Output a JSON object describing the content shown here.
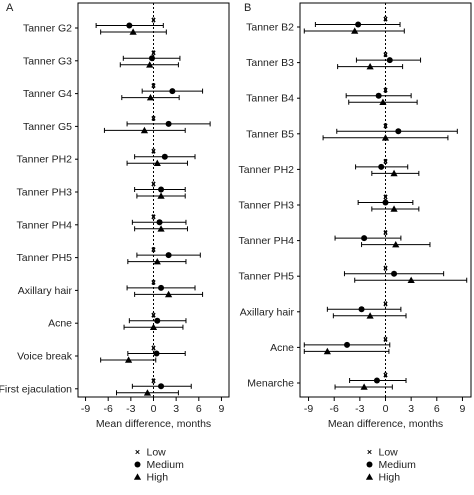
{
  "chart_data": [
    {
      "panel_label": "A",
      "type": "forest",
      "xlabel": "Mean difference, months",
      "xlim": [
        -10,
        10
      ],
      "xticks": [
        -9,
        -6,
        -3,
        0,
        3,
        6,
        9
      ],
      "reference_line": 0,
      "groups": [
        "Tanner G2",
        "Tanner G3",
        "Tanner G4",
        "Tanner G5",
        "Tanner PH2",
        "Tanner PH3",
        "Tanner PH4",
        "Tanner PH5",
        "Axillary hair",
        "Acne",
        "Voice break",
        "First ejaculation"
      ],
      "series": [
        {
          "name": "Low",
          "marker": "x",
          "points": [
            {
              "est": 0.0,
              "lo": -0.1,
              "hi": 0.1
            },
            {
              "est": 0.0,
              "lo": -0.1,
              "hi": 0.1
            },
            {
              "est": 0.0,
              "lo": -0.1,
              "hi": 0.1
            },
            {
              "est": 0.0,
              "lo": -0.1,
              "hi": 0.1
            },
            {
              "est": 0.0,
              "lo": -0.1,
              "hi": 0.1
            },
            {
              "est": 0.0,
              "lo": -0.1,
              "hi": 0.1
            },
            {
              "est": 0.0,
              "lo": -0.1,
              "hi": 0.1
            },
            {
              "est": 0.0,
              "lo": -0.1,
              "hi": 0.1
            },
            {
              "est": 0.0,
              "lo": -0.1,
              "hi": 0.1
            },
            {
              "est": 0.0,
              "lo": -0.1,
              "hi": 0.1
            },
            {
              "est": 0.0,
              "lo": -0.1,
              "hi": 0.1
            },
            {
              "est": 0.0,
              "lo": -0.1,
              "hi": 0.1
            }
          ]
        },
        {
          "name": "Medium",
          "marker": "circle",
          "points": [
            {
              "est": -3.2,
              "lo": -7.6,
              "hi": 1.3
            },
            {
              "est": -0.2,
              "lo": -4.0,
              "hi": 3.5
            },
            {
              "est": 2.5,
              "lo": -1.5,
              "hi": 6.5
            },
            {
              "est": 2.0,
              "lo": -3.5,
              "hi": 7.5
            },
            {
              "est": 1.5,
              "lo": -2.5,
              "hi": 5.5
            },
            {
              "est": 1.0,
              "lo": -2.5,
              "hi": 4.2
            },
            {
              "est": 0.8,
              "lo": -2.8,
              "hi": 4.3
            },
            {
              "est": 2.0,
              "lo": -2.2,
              "hi": 6.2
            },
            {
              "est": 1.0,
              "lo": -3.5,
              "hi": 5.5
            },
            {
              "est": 0.5,
              "lo": -3.2,
              "hi": 4.3
            },
            {
              "est": 0.4,
              "lo": -3.4,
              "hi": 4.2
            },
            {
              "est": 1.0,
              "lo": -2.8,
              "hi": 5.0
            }
          ]
        },
        {
          "name": "High",
          "marker": "triangle",
          "points": [
            {
              "est": -2.7,
              "lo": -7.0,
              "hi": 1.7
            },
            {
              "est": -0.5,
              "lo": -4.4,
              "hi": 3.3
            },
            {
              "est": -0.4,
              "lo": -4.2,
              "hi": 3.4
            },
            {
              "est": -1.2,
              "lo": -6.5,
              "hi": 4.2
            },
            {
              "est": 0.5,
              "lo": -3.5,
              "hi": 4.5
            },
            {
              "est": 1.0,
              "lo": -2.2,
              "hi": 4.2
            },
            {
              "est": 1.0,
              "lo": -2.5,
              "hi": 4.5
            },
            {
              "est": 0.5,
              "lo": -3.4,
              "hi": 4.3
            },
            {
              "est": 2.0,
              "lo": -2.5,
              "hi": 6.5
            },
            {
              "est": 0.0,
              "lo": -3.9,
              "hi": 3.9
            },
            {
              "est": -3.3,
              "lo": -7.0,
              "hi": 0.3
            },
            {
              "est": -0.8,
              "lo": -4.9,
              "hi": 3.3
            }
          ]
        }
      ]
    },
    {
      "panel_label": "B",
      "type": "forest",
      "xlabel": "Mean difference, months",
      "xlim": [
        -10,
        10
      ],
      "xticks": [
        -9,
        -6,
        -3,
        0,
        3,
        6,
        9
      ],
      "reference_line": 0,
      "groups": [
        "Tanner B2",
        "Tanner B3",
        "Tanner B4",
        "Tanner B5",
        "Tanner PH2",
        "Tanner PH3",
        "Tanner PH4",
        "Tanner PH5",
        "Axillary hair",
        "Acne",
        "Menarche"
      ],
      "series": [
        {
          "name": "Low",
          "marker": "x",
          "points": [
            {
              "est": 0.0,
              "lo": -0.1,
              "hi": 0.1
            },
            {
              "est": 0.0,
              "lo": -0.1,
              "hi": 0.1
            },
            {
              "est": 0.0,
              "lo": -0.1,
              "hi": 0.1
            },
            {
              "est": 0.0,
              "lo": -0.1,
              "hi": 0.1
            },
            {
              "est": 0.0,
              "lo": -0.1,
              "hi": 0.1
            },
            {
              "est": 0.0,
              "lo": -0.1,
              "hi": 0.1
            },
            {
              "est": 0.0,
              "lo": -0.1,
              "hi": 0.1
            },
            {
              "est": 0.0,
              "lo": -0.1,
              "hi": 0.1
            },
            {
              "est": 0.0,
              "lo": -0.1,
              "hi": 0.1
            },
            {
              "est": 0.0,
              "lo": -0.1,
              "hi": 0.1
            },
            {
              "est": 0.0,
              "lo": -0.1,
              "hi": 0.1
            }
          ]
        },
        {
          "name": "Medium",
          "marker": "circle",
          "points": [
            {
              "est": -3.2,
              "lo": -8.2,
              "hi": 1.7
            },
            {
              "est": 0.5,
              "lo": -3.4,
              "hi": 4.1
            },
            {
              "est": -0.8,
              "lo": -4.6,
              "hi": 3.0
            },
            {
              "est": 1.5,
              "lo": -5.7,
              "hi": 8.4
            },
            {
              "est": -0.5,
              "lo": -3.5,
              "hi": 2.6
            },
            {
              "est": 0.0,
              "lo": -3.2,
              "hi": 3.2
            },
            {
              "est": -2.5,
              "lo": -5.9,
              "hi": 1.8
            },
            {
              "est": 1.0,
              "lo": -4.8,
              "hi": 6.8
            },
            {
              "est": -2.8,
              "lo": -6.8,
              "hi": 1.8
            },
            {
              "est": -4.5,
              "lo": -9.5,
              "hi": 0.5
            },
            {
              "est": -1.0,
              "lo": -4.2,
              "hi": 2.4
            }
          ]
        },
        {
          "name": "High",
          "marker": "triangle",
          "points": [
            {
              "est": -3.6,
              "lo": -9.5,
              "hi": 2.2
            },
            {
              "est": -1.8,
              "lo": -5.6,
              "hi": 2.0
            },
            {
              "est": -0.3,
              "lo": -4.3,
              "hi": 3.7
            },
            {
              "est": 0.0,
              "lo": -7.3,
              "hi": 7.3
            },
            {
              "est": 1.0,
              "lo": -1.6,
              "hi": 3.9
            },
            {
              "est": 1.0,
              "lo": -1.6,
              "hi": 3.9
            },
            {
              "est": 1.2,
              "lo": -2.8,
              "hi": 5.2
            },
            {
              "est": 3.0,
              "lo": -3.6,
              "hi": 9.5
            },
            {
              "est": -1.8,
              "lo": -6.1,
              "hi": 2.4
            },
            {
              "est": -6.8,
              "lo": -9.5,
              "hi": 0.4
            },
            {
              "est": -2.5,
              "lo": -5.9,
              "hi": 0.8
            }
          ]
        }
      ]
    }
  ]
}
